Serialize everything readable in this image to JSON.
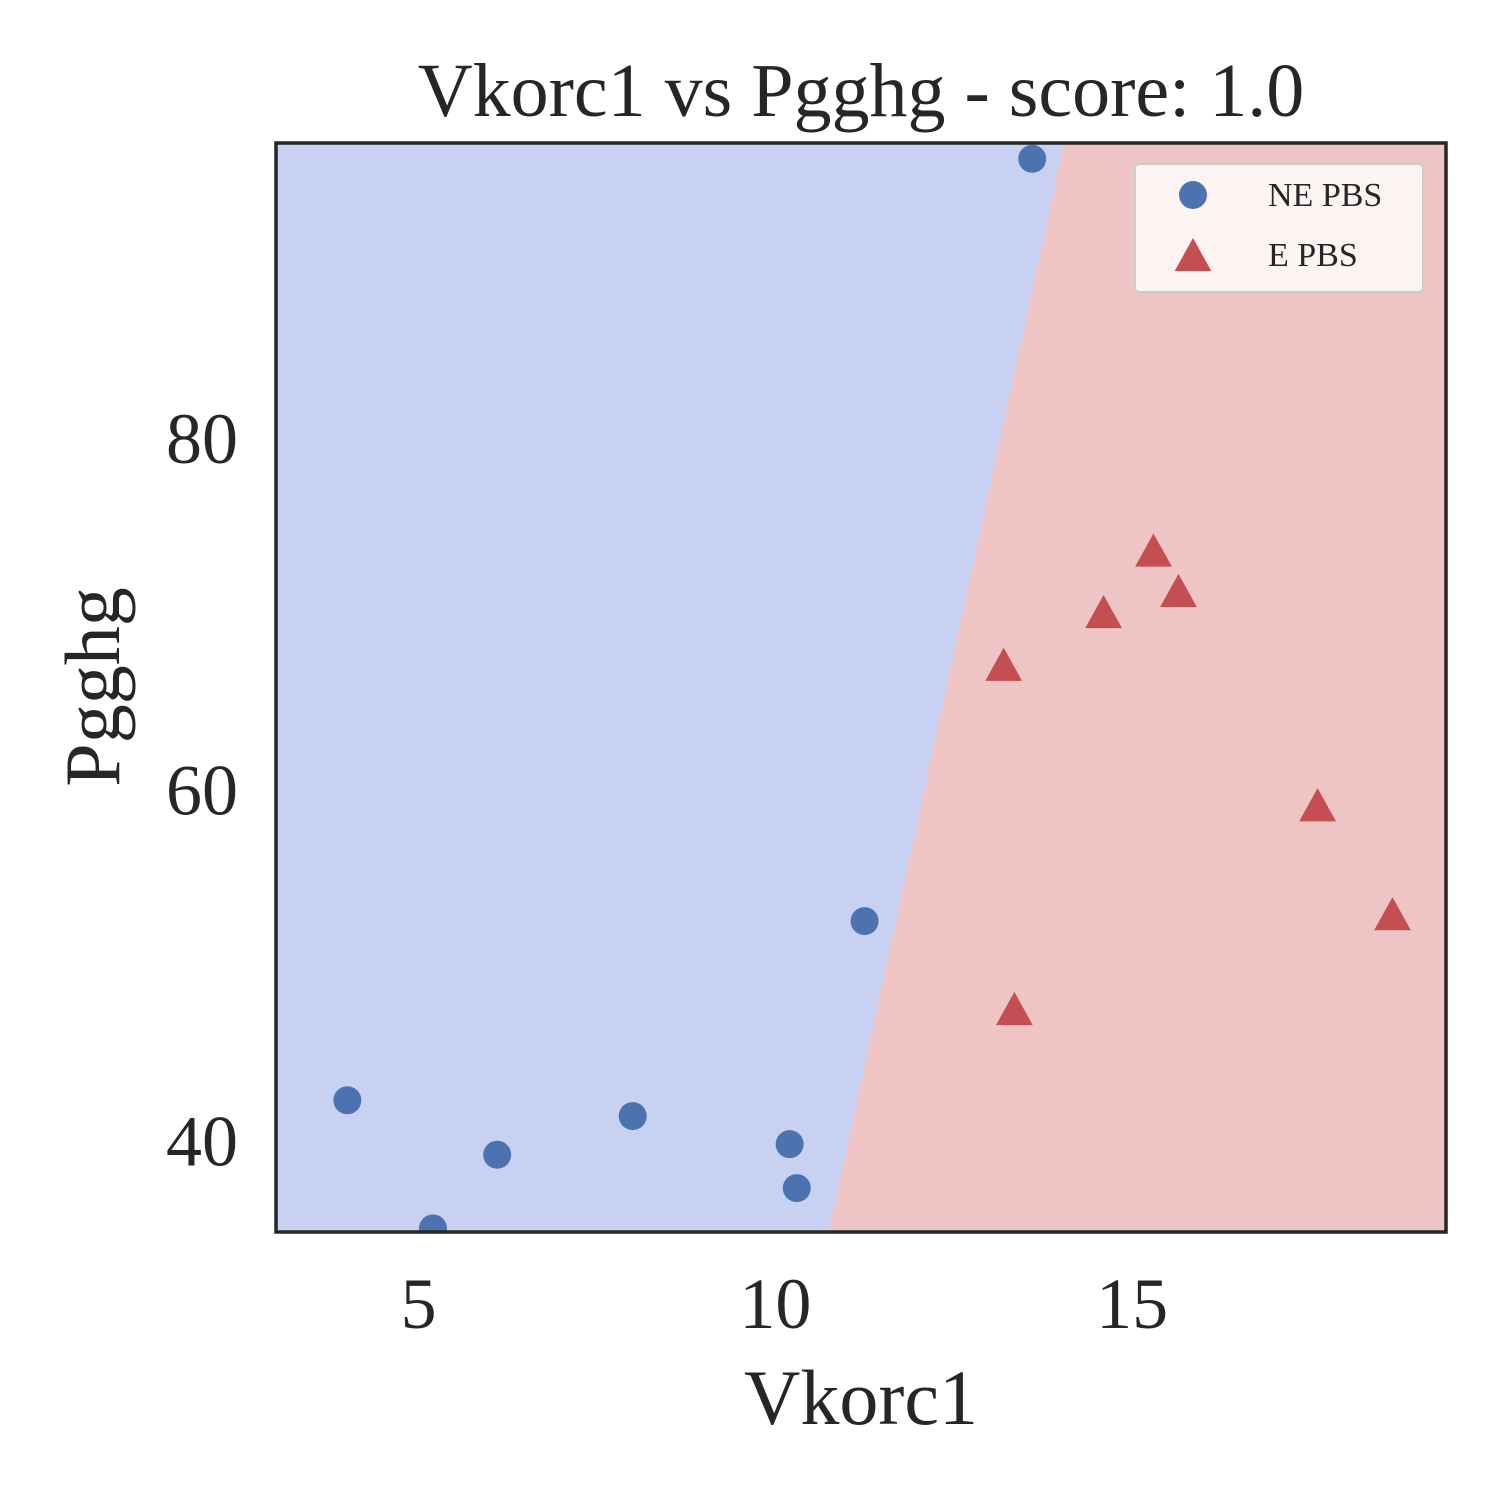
{
  "chart_data": {
    "type": "scatter",
    "title": "Vkorc1 vs Pgghg - score: 1.0",
    "xlabel": "Vkorc1",
    "ylabel": "Pgghg",
    "xlim": [
      3.0,
      19.4
    ],
    "ylim": [
      34.8,
      96.8
    ],
    "xticks": [
      5,
      10,
      15
    ],
    "yticks": [
      40,
      60,
      80
    ],
    "grid": false,
    "legend_position": "top-right",
    "decision_boundary": {
      "description": "linear classifier regions",
      "line": [
        {
          "x": 10.75,
          "y": 34.8
        },
        {
          "x": 14.05,
          "y": 96.8
        }
      ],
      "left_region_color": "#c8d1f1",
      "right_region_color": "#eec4c4"
    },
    "series": [
      {
        "name": "NE PBS",
        "marker": "circle",
        "color": "#4c72b0",
        "points": [
          {
            "x": 13.6,
            "y": 95.9
          },
          {
            "x": 11.25,
            "y": 52.5
          },
          {
            "x": 4.0,
            "y": 42.3
          },
          {
            "x": 8.0,
            "y": 41.4
          },
          {
            "x": 6.1,
            "y": 39.2
          },
          {
            "x": 10.2,
            "y": 39.8
          },
          {
            "x": 10.3,
            "y": 37.3
          },
          {
            "x": 5.2,
            "y": 35.0
          }
        ]
      },
      {
        "name": "E PBS",
        "marker": "triangle",
        "color": "#c44e52",
        "points": [
          {
            "x": 15.3,
            "y": 73.6
          },
          {
            "x": 15.65,
            "y": 71.3
          },
          {
            "x": 14.6,
            "y": 70.1
          },
          {
            "x": 13.2,
            "y": 67.1
          },
          {
            "x": 17.6,
            "y": 59.1
          },
          {
            "x": 18.65,
            "y": 52.9
          },
          {
            "x": 13.35,
            "y": 47.5
          }
        ]
      }
    ]
  }
}
